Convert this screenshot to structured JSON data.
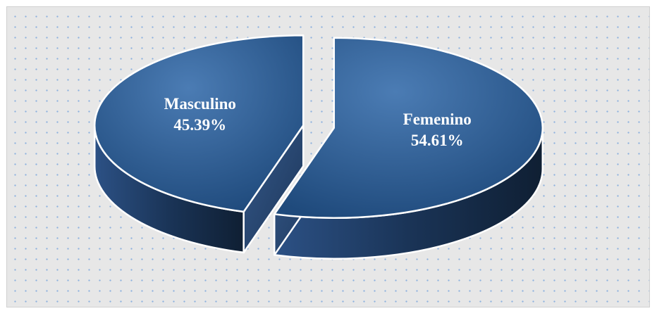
{
  "chart_data": {
    "type": "pie",
    "style": "3d-exploded",
    "categories": [
      "Femenino",
      "Masculino"
    ],
    "values": [
      54.61,
      45.39
    ],
    "labels": [
      "54.61%",
      "45.39%"
    ],
    "colors": {
      "top_light": "#4b7cb4",
      "top_dark": "#1f4a7c",
      "side_light": "#2c5185",
      "side_dark": "#0f1f33",
      "outline": "#ffffff",
      "background": "#e7e7e7",
      "dots": "#8fb2de"
    },
    "legend": "none",
    "grid": false
  }
}
